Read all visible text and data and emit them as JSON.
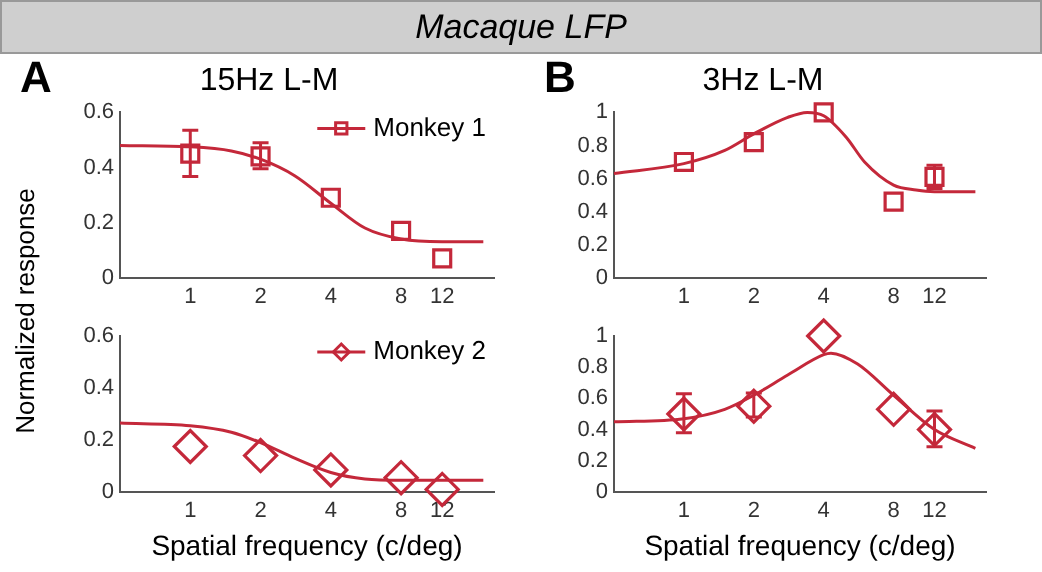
{
  "chart_data": [
    {
      "type": "scatter",
      "title": "15Hz L-M",
      "ylabel": "Normalized response",
      "annotations": [
        "Macaque LFP",
        "A"
      ],
      "x": [
        1,
        2,
        4,
        8,
        12
      ],
      "xlim": [
        0.5,
        20
      ],
      "xticks": [
        1,
        2,
        4,
        8,
        12
      ],
      "ylim": [
        0,
        0.6
      ],
      "yticks": [
        0,
        0.2,
        0.4,
        0.6
      ],
      "log": "x",
      "legend": "top right",
      "series": [
        {
          "name": "Monkey 1",
          "marker": "square",
          "color": "#c4283a",
          "values": [
            0.45,
            0.44,
            0.29,
            0.17,
            0.07
          ],
          "errors": [
            [
              0.367,
              0.535
            ],
            [
              0.395,
              0.49
            ],
            null,
            null,
            null
          ]
        },
        {
          "type": "line",
          "marker": "none",
          "color": "#c4283a",
          "x": [
            0.5,
            1,
            1.5,
            2,
            2.8,
            4,
            5.6,
            8,
            12,
            18
          ],
          "values": [
            0.48,
            0.475,
            0.46,
            0.43,
            0.37,
            0.27,
            0.18,
            0.14,
            0.13,
            0.13
          ]
        }
      ]
    },
    {
      "type": "scatter",
      "xlabel": "Spatial frequency (c/deg)",
      "x": [
        1,
        2,
        4,
        8,
        12
      ],
      "xlim": [
        0.5,
        20
      ],
      "xticks": [
        1,
        2,
        4,
        8,
        12
      ],
      "ylim": [
        0,
        0.6
      ],
      "yticks": [
        0,
        0.2,
        0.4,
        0.6
      ],
      "log": "x",
      "legend": "top right",
      "series": [
        {
          "name": "Monkey 2",
          "marker": "diamond",
          "color": "#c4283a",
          "values": [
            0.175,
            0.14,
            0.085,
            0.055,
            0.01
          ]
        },
        {
          "type": "line",
          "marker": "none",
          "color": "#c4283a",
          "x": [
            0.5,
            1,
            1.5,
            2,
            2.8,
            4,
            5.6,
            8,
            12,
            18
          ],
          "values": [
            0.265,
            0.255,
            0.23,
            0.19,
            0.13,
            0.075,
            0.05,
            0.045,
            0.045,
            0.045
          ]
        }
      ]
    },
    {
      "type": "scatter",
      "title": "3Hz L-M",
      "annotations": [
        "B"
      ],
      "x": [
        1,
        2,
        4,
        8,
        12
      ],
      "xlim": [
        0.5,
        20
      ],
      "xticks": [
        1,
        2,
        4,
        8,
        12
      ],
      "ylim": [
        0,
        1
      ],
      "yticks": [
        0,
        0.2,
        0.4,
        0.6,
        0.8,
        1
      ],
      "log": "x",
      "series": [
        {
          "marker": "square",
          "color": "#c4283a",
          "values": [
            0.7,
            0.82,
            1.0,
            0.46,
            0.61
          ],
          "errors": [
            null,
            null,
            null,
            null,
            [
              0.54,
              0.68
            ]
          ]
        },
        {
          "type": "line",
          "marker": "none",
          "color": "#c4283a",
          "x": [
            0.5,
            1,
            1.5,
            2,
            2.8,
            3.4,
            4,
            5,
            6,
            8,
            10,
            12,
            18
          ],
          "values": [
            0.63,
            0.69,
            0.77,
            0.87,
            0.97,
            1.0,
            0.98,
            0.85,
            0.7,
            0.56,
            0.53,
            0.52,
            0.52
          ]
        }
      ]
    },
    {
      "type": "scatter",
      "xlabel": "Spatial frequency (c/deg)",
      "x": [
        1,
        2,
        4,
        8,
        12
      ],
      "xlim": [
        0.5,
        20
      ],
      "xticks": [
        1,
        2,
        4,
        8,
        12
      ],
      "ylim": [
        0,
        1
      ],
      "yticks": [
        0,
        0.2,
        0.4,
        0.6,
        0.8,
        1
      ],
      "log": "x",
      "series": [
        {
          "marker": "diamond",
          "color": "#c4283a",
          "values": [
            0.5,
            0.55,
            1.0,
            0.53,
            0.4
          ],
          "errors": [
            [
              0.38,
              0.63
            ],
            [
              0.48,
              0.635
            ],
            null,
            null,
            [
              0.29,
              0.52
            ]
          ]
        },
        {
          "type": "line",
          "marker": "none",
          "color": "#c4283a",
          "x": [
            0.5,
            1,
            1.5,
            2,
            2.8,
            4,
            4.3,
            5.6,
            8,
            12,
            18
          ],
          "values": [
            0.45,
            0.47,
            0.53,
            0.62,
            0.75,
            0.88,
            0.89,
            0.82,
            0.62,
            0.4,
            0.28
          ]
        }
      ]
    }
  ]
}
